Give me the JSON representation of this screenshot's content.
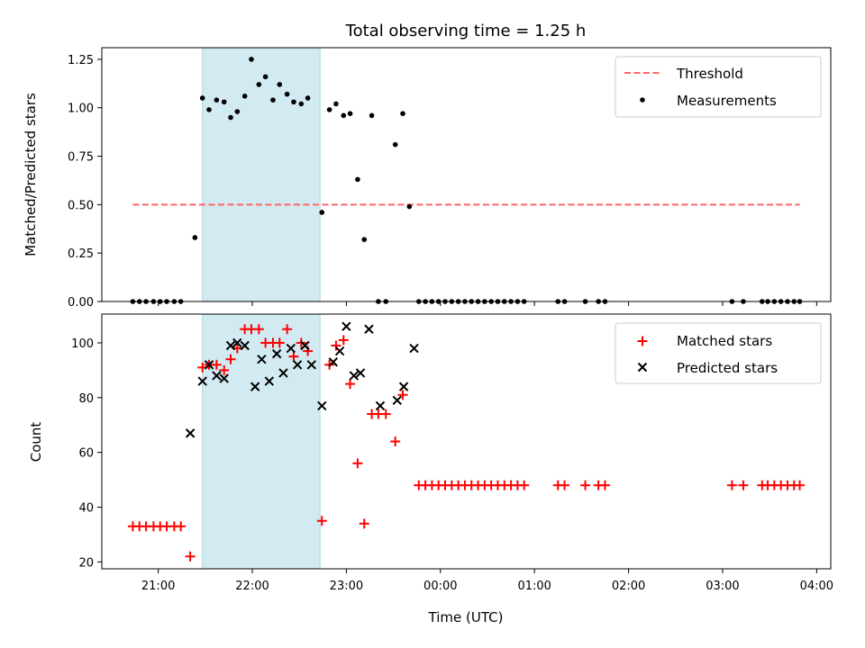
{
  "chart_data": {
    "title": "Total observing time = 1.25 h",
    "xlabel": "Time (UTC)",
    "x_ticks": [
      "21:00",
      "22:00",
      "23:00",
      "00:00",
      "01:00",
      "02:00",
      "03:00",
      "04:00"
    ],
    "x_range_hours": [
      20.4,
      28.15
    ],
    "observing_window_hours": [
      21.47,
      22.72
    ],
    "observing_window_color": "#add8e6",
    "panels": [
      {
        "type": "scatter",
        "ylabel": "Matched/Predicted stars",
        "ylim": [
          0,
          1.31
        ],
        "y_ticks": [
          "0.00",
          "0.25",
          "0.50",
          "0.75",
          "1.00",
          "1.25"
        ],
        "y_tick_values": [
          0,
          0.25,
          0.5,
          0.75,
          1.0,
          1.25
        ],
        "legend_position": "upper right",
        "threshold": {
          "name": "Threshold",
          "value": 0.5,
          "x_range": [
            20.73,
            27.82
          ],
          "color": "#ff6666"
        },
        "series": [
          {
            "name": "Measurements",
            "color": "#000000",
            "marker": "dot",
            "points": [
              [
                20.73,
                0
              ],
              [
                20.8,
                0
              ],
              [
                20.87,
                0
              ],
              [
                20.95,
                0
              ],
              [
                21.02,
                0
              ],
              [
                21.09,
                0
              ],
              [
                21.17,
                0
              ],
              [
                21.24,
                0
              ],
              [
                21.39,
                0.33
              ],
              [
                21.47,
                1.05
              ],
              [
                21.54,
                0.99
              ],
              [
                21.62,
                1.04
              ],
              [
                21.7,
                1.03
              ],
              [
                21.77,
                0.95
              ],
              [
                21.84,
                0.98
              ],
              [
                21.92,
                1.06
              ],
              [
                21.99,
                1.25
              ],
              [
                22.07,
                1.12
              ],
              [
                22.14,
                1.16
              ],
              [
                22.22,
                1.04
              ],
              [
                22.29,
                1.12
              ],
              [
                22.37,
                1.07
              ],
              [
                22.44,
                1.03
              ],
              [
                22.52,
                1.02
              ],
              [
                22.59,
                1.05
              ],
              [
                22.74,
                0.46
              ],
              [
                22.82,
                0.99
              ],
              [
                22.89,
                1.02
              ],
              [
                22.97,
                0.96
              ],
              [
                23.04,
                0.97
              ],
              [
                23.12,
                0.63
              ],
              [
                23.19,
                0.32
              ],
              [
                23.27,
                0.96
              ],
              [
                23.34,
                0
              ],
              [
                23.42,
                0
              ],
              [
                23.52,
                0.81
              ],
              [
                23.6,
                0.97
              ],
              [
                23.67,
                0.49
              ],
              [
                23.77,
                0
              ],
              [
                23.84,
                0
              ],
              [
                23.91,
                0
              ],
              [
                23.98,
                0
              ],
              [
                24.05,
                0
              ],
              [
                24.12,
                0
              ],
              [
                24.19,
                0
              ],
              [
                24.26,
                0
              ],
              [
                24.33,
                0
              ],
              [
                24.4,
                0
              ],
              [
                24.47,
                0
              ],
              [
                24.54,
                0
              ],
              [
                24.61,
                0
              ],
              [
                24.68,
                0
              ],
              [
                24.75,
                0
              ],
              [
                24.82,
                0
              ],
              [
                24.89,
                0
              ],
              [
                25.25,
                0
              ],
              [
                25.32,
                0
              ],
              [
                25.54,
                0
              ],
              [
                25.68,
                0
              ],
              [
                25.75,
                0
              ],
              [
                27.1,
                0
              ],
              [
                27.22,
                0
              ],
              [
                27.42,
                0
              ],
              [
                27.48,
                0
              ],
              [
                27.55,
                0
              ],
              [
                27.62,
                0
              ],
              [
                27.69,
                0
              ],
              [
                27.76,
                0
              ],
              [
                27.82,
                0
              ]
            ]
          }
        ]
      },
      {
        "type": "scatter",
        "ylabel": "Count",
        "ylim": [
          17.5,
          110.5
        ],
        "y_ticks": [
          "20",
          "40",
          "60",
          "80",
          "100"
        ],
        "y_tick_values": [
          20,
          40,
          60,
          80,
          100
        ],
        "legend_position": "upper right",
        "series": [
          {
            "name": "Matched stars",
            "color": "#ff0000",
            "marker": "plus",
            "points": [
              [
                20.73,
                33
              ],
              [
                20.8,
                33
              ],
              [
                20.87,
                33
              ],
              [
                20.95,
                33
              ],
              [
                21.02,
                33
              ],
              [
                21.09,
                33
              ],
              [
                21.17,
                33
              ],
              [
                21.24,
                33
              ],
              [
                21.34,
                22
              ],
              [
                21.47,
                91
              ],
              [
                21.54,
                92
              ],
              [
                21.62,
                92
              ],
              [
                21.7,
                90
              ],
              [
                21.77,
                94
              ],
              [
                21.84,
                98
              ],
              [
                21.92,
                105
              ],
              [
                21.99,
                105
              ],
              [
                22.07,
                105
              ],
              [
                22.14,
                100
              ],
              [
                22.22,
                100
              ],
              [
                22.29,
                100
              ],
              [
                22.37,
                105
              ],
              [
                22.44,
                95
              ],
              [
                22.52,
                100
              ],
              [
                22.59,
                97
              ],
              [
                22.74,
                35
              ],
              [
                22.82,
                92
              ],
              [
                22.89,
                99
              ],
              [
                22.97,
                101
              ],
              [
                23.04,
                85
              ],
              [
                23.12,
                56
              ],
              [
                23.19,
                34
              ],
              [
                23.27,
                74
              ],
              [
                23.34,
                74
              ],
              [
                23.42,
                74
              ],
              [
                23.52,
                64
              ],
              [
                23.6,
                81
              ],
              [
                23.77,
                48
              ],
              [
                23.84,
                48
              ],
              [
                23.91,
                48
              ],
              [
                23.98,
                48
              ],
              [
                24.05,
                48
              ],
              [
                24.12,
                48
              ],
              [
                24.19,
                48
              ],
              [
                24.26,
                48
              ],
              [
                24.33,
                48
              ],
              [
                24.4,
                48
              ],
              [
                24.47,
                48
              ],
              [
                24.54,
                48
              ],
              [
                24.61,
                48
              ],
              [
                24.68,
                48
              ],
              [
                24.75,
                48
              ],
              [
                24.82,
                48
              ],
              [
                24.89,
                48
              ],
              [
                25.25,
                48
              ],
              [
                25.32,
                48
              ],
              [
                25.54,
                48
              ],
              [
                25.68,
                48
              ],
              [
                25.75,
                48
              ],
              [
                27.1,
                48
              ],
              [
                27.22,
                48
              ],
              [
                27.42,
                48
              ],
              [
                27.48,
                48
              ],
              [
                27.55,
                48
              ],
              [
                27.62,
                48
              ],
              [
                27.69,
                48
              ],
              [
                27.76,
                48
              ],
              [
                27.82,
                48
              ]
            ]
          },
          {
            "name": "Predicted stars",
            "color": "#000000",
            "marker": "x",
            "points": [
              [
                21.34,
                67
              ],
              [
                21.47,
                86
              ],
              [
                21.54,
                92
              ],
              [
                21.62,
                88
              ],
              [
                21.7,
                87
              ],
              [
                21.77,
                99
              ],
              [
                21.84,
                100
              ],
              [
                21.92,
                99
              ],
              [
                22.03,
                84
              ],
              [
                22.1,
                94
              ],
              [
                22.18,
                86
              ],
              [
                22.26,
                96
              ],
              [
                22.33,
                89
              ],
              [
                22.41,
                98
              ],
              [
                22.48,
                92
              ],
              [
                22.56,
                99
              ],
              [
                22.63,
                92
              ],
              [
                22.74,
                77
              ],
              [
                22.86,
                93
              ],
              [
                22.93,
                97
              ],
              [
                23.0,
                106
              ],
              [
                23.08,
                88
              ],
              [
                23.15,
                89
              ],
              [
                23.24,
                105
              ],
              [
                23.36,
                77
              ],
              [
                23.54,
                79
              ],
              [
                23.61,
                84
              ],
              [
                23.72,
                98
              ]
            ]
          }
        ]
      }
    ]
  }
}
